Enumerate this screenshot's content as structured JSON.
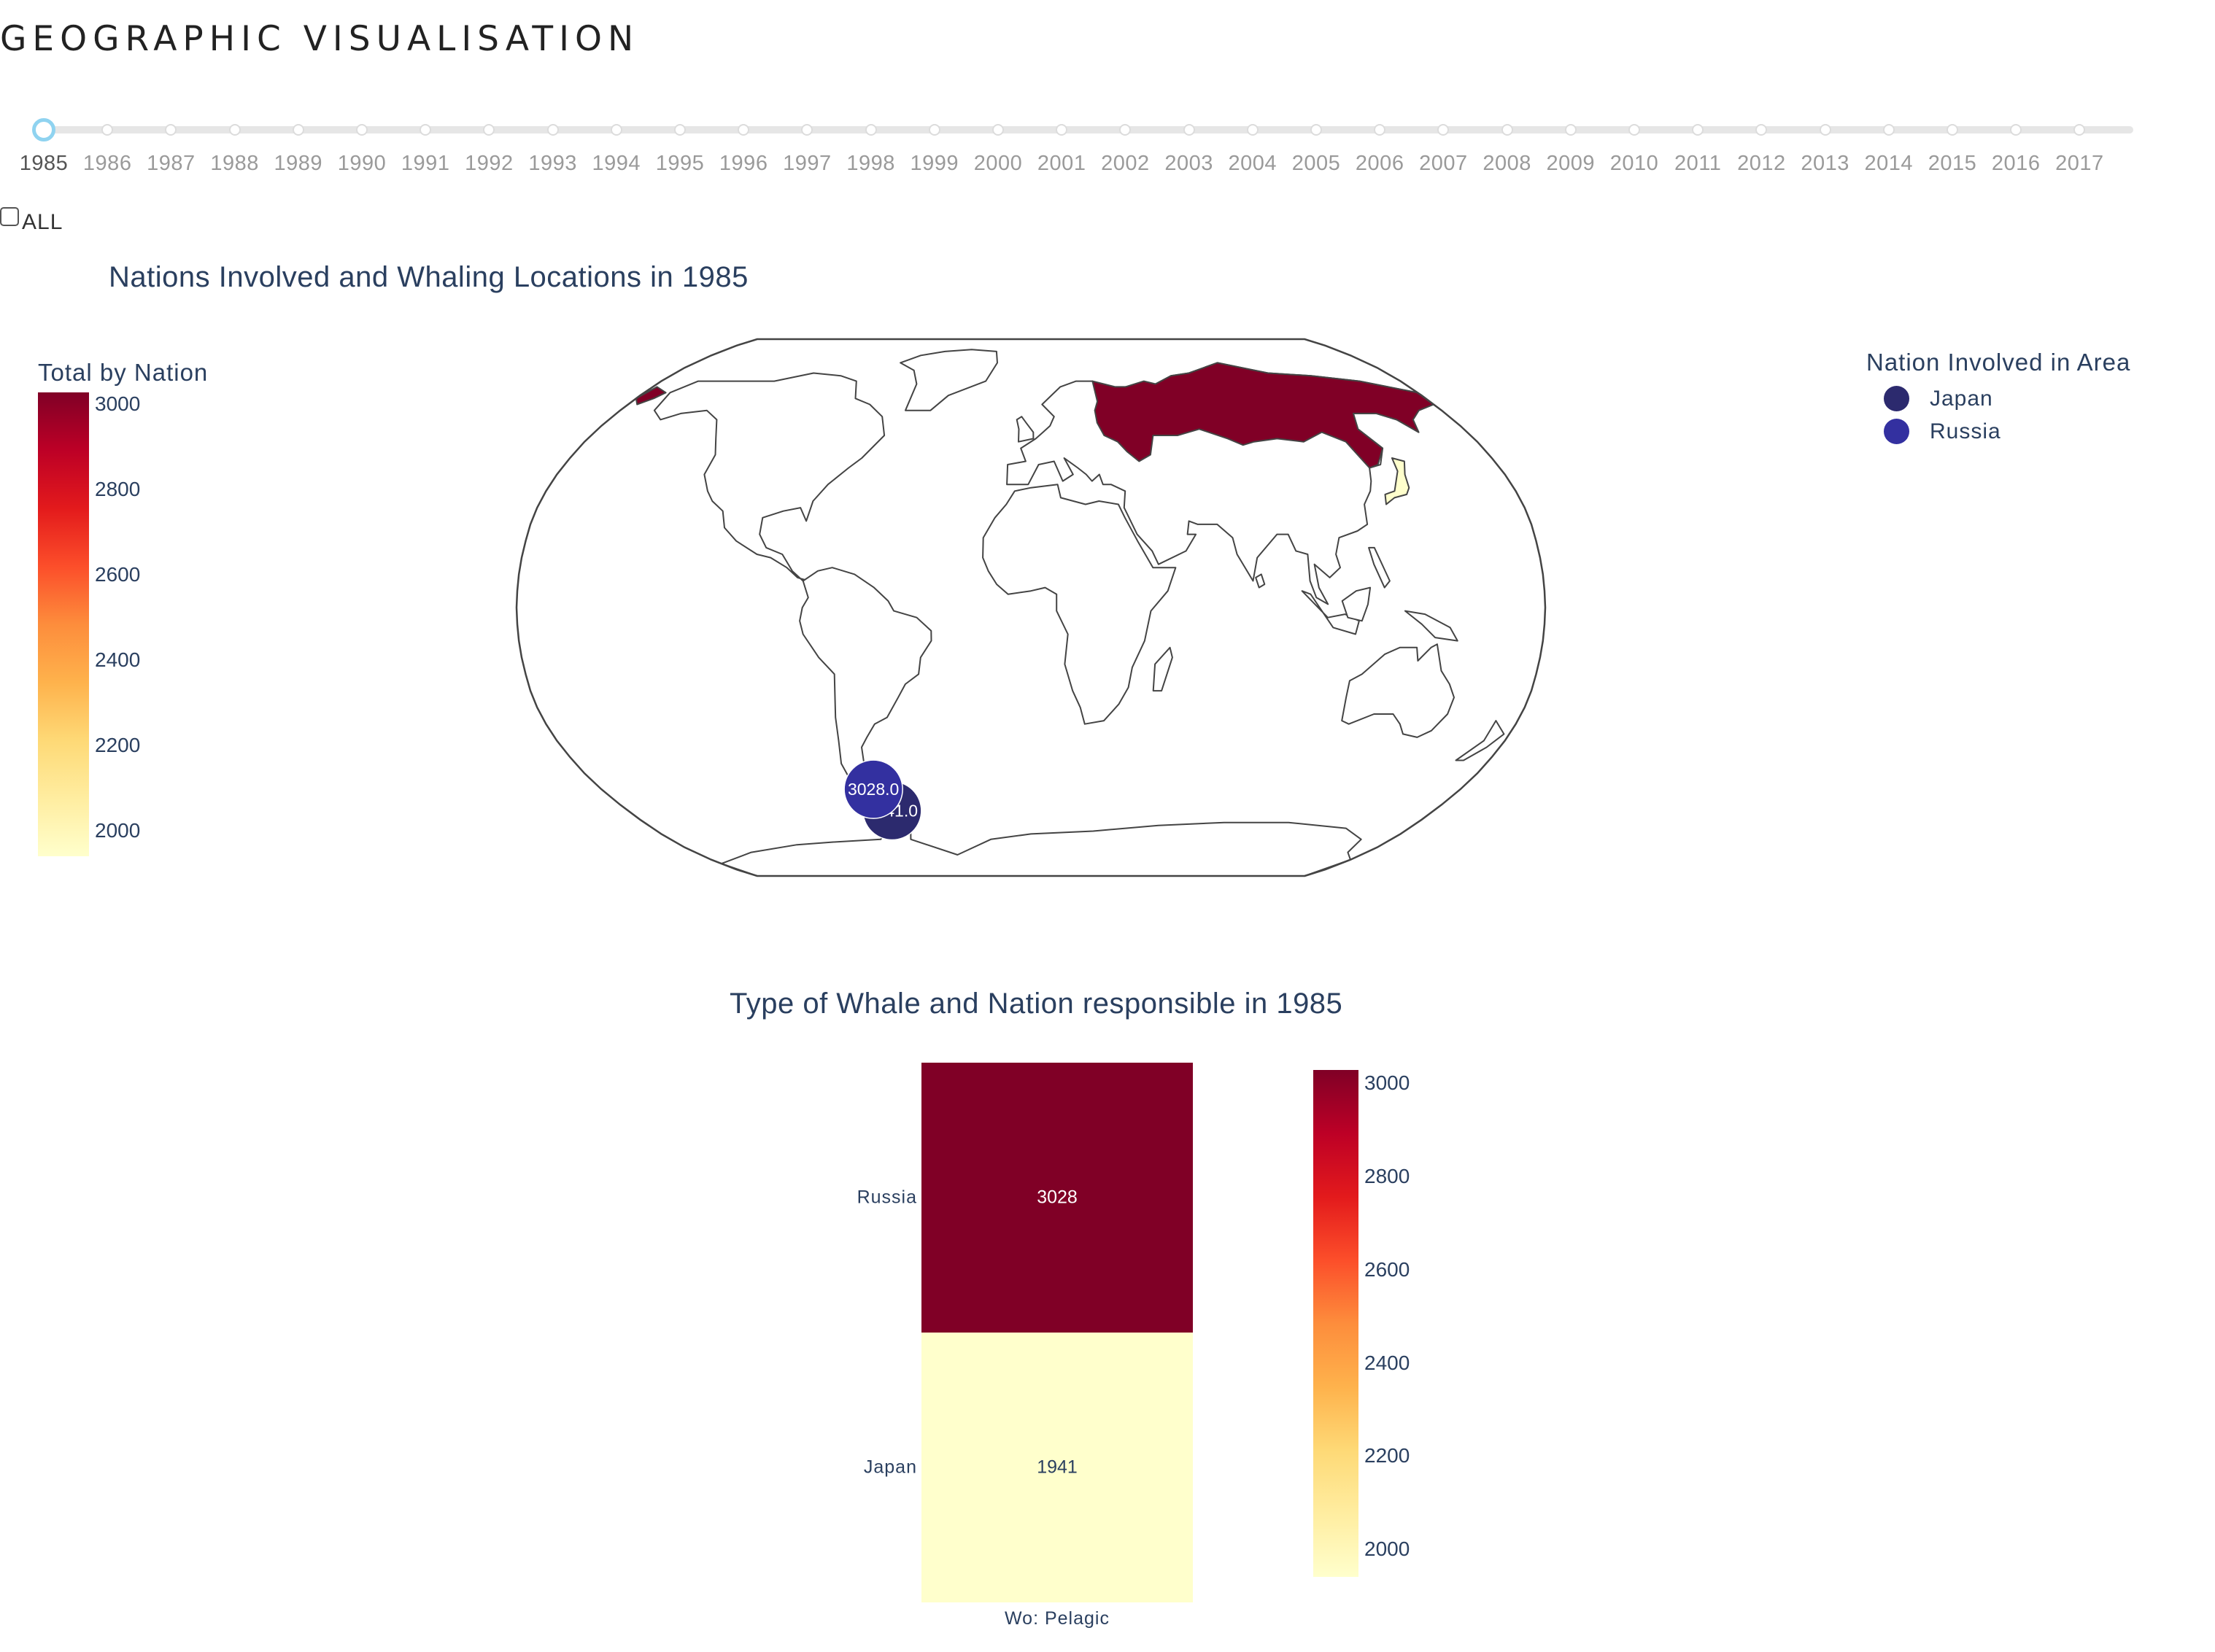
{
  "page": {
    "title": "GEOGRAPHIC VISUALISATION"
  },
  "slider": {
    "years": [
      "1985",
      "1986",
      "1987",
      "1988",
      "1989",
      "1990",
      "1991",
      "1992",
      "1993",
      "1994",
      "1995",
      "1996",
      "1997",
      "1998",
      "1999",
      "2000",
      "2001",
      "2002",
      "2003",
      "2004",
      "2005",
      "2006",
      "2007",
      "2008",
      "2009",
      "2010",
      "2011",
      "2012",
      "2013",
      "2014",
      "2015",
      "2016",
      "2017"
    ],
    "selected": "1985"
  },
  "all_toggle": {
    "label": "ALL",
    "checked": false
  },
  "colors": {
    "scale": [
      "#ffffcc",
      "#ffeda0",
      "#fed976",
      "#feb24c",
      "#fd8d3c",
      "#fc4e2a",
      "#e31a1c",
      "#bd0026",
      "#800026"
    ],
    "japan_marker": "#2c2a6e",
    "russia_marker": "#3330a0",
    "coastline": "#444444"
  },
  "chart_data": [
    {
      "type": "choropleth-map",
      "title": "Nations Involved and Whaling Locations in 1985",
      "colorbar": {
        "title": "Total by Nation",
        "range": [
          1941,
          3028
        ],
        "ticks": [
          3000,
          2800,
          2600,
          2400,
          2200,
          2000
        ]
      },
      "regions": [
        {
          "name": "Russia",
          "value": 3028
        },
        {
          "name": "Japan",
          "value": 1941
        }
      ],
      "markers": [
        {
          "name": "Japan",
          "label": "1941.0",
          "value": 1941,
          "lon": -62,
          "lat": -62
        },
        {
          "name": "Russia",
          "label": "3028.0",
          "value": 3028,
          "lon": -66,
          "lat": -55
        }
      ],
      "legend": {
        "title": "Nation Involved in Area",
        "items": [
          "Japan",
          "Russia"
        ],
        "placement": "top-right"
      }
    },
    {
      "type": "heatmap",
      "title": "Type of Whale and Nation responsible in 1985",
      "x": [
        "Wo: Pelagic"
      ],
      "y": [
        "Russia",
        "Japan"
      ],
      "z": [
        [
          3028
        ],
        [
          1941
        ]
      ],
      "annotations": [
        "3028",
        "1941"
      ],
      "colorbar": {
        "range": [
          1941,
          3028
        ],
        "ticks": [
          3000,
          2800,
          2600,
          2400,
          2200,
          2000
        ]
      }
    }
  ]
}
